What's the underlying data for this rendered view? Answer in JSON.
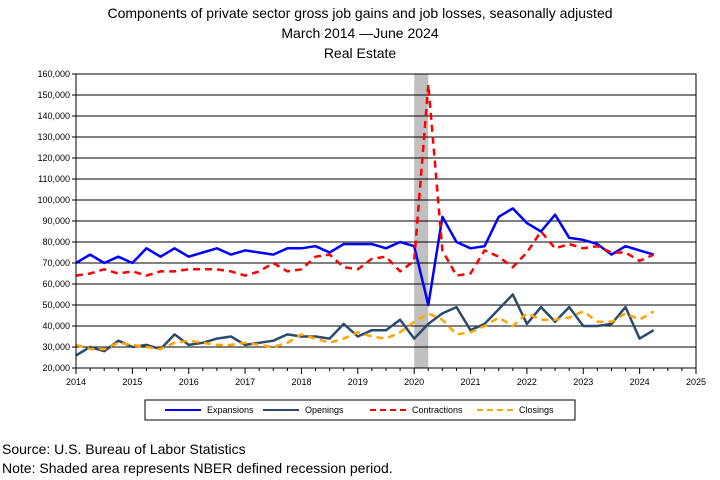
{
  "title_lines": [
    "Components of private sector gross job gains and job losses, seasonally adjusted",
    "March 2014 —June 2024",
    "Real Estate"
  ],
  "footnotes": {
    "source": "Source: U.S. Bureau of Labor Statistics",
    "note": "Note: Shaded area represents NBER defined recession period."
  },
  "chart_data": {
    "type": "line",
    "x_axis": {
      "min": 2014,
      "max": 2025,
      "ticks": [
        "2014",
        "2015",
        "2016",
        "2017",
        "2018",
        "2019",
        "2020",
        "2021",
        "2022",
        "2023",
        "2024",
        "2025"
      ]
    },
    "y_axis": {
      "min": 20000,
      "max": 160000,
      "step": 10000,
      "ticks": [
        "20,000",
        "30,000",
        "40,000",
        "50,000",
        "60,000",
        "70,000",
        "80,000",
        "90,000",
        "100,000",
        "110,000",
        "120,000",
        "130,000",
        "140,000",
        "150,000",
        "160,000"
      ]
    },
    "grid": {
      "horizontal": true,
      "vertical": false
    },
    "recession": {
      "start": 2020.0,
      "end": 2020.25
    },
    "legend_position": "bottom",
    "quarters": [
      "2014-Q1",
      "2014-Q2",
      "2014-Q3",
      "2014-Q4",
      "2015-Q1",
      "2015-Q2",
      "2015-Q3",
      "2015-Q4",
      "2016-Q1",
      "2016-Q2",
      "2016-Q3",
      "2016-Q4",
      "2017-Q1",
      "2017-Q2",
      "2017-Q3",
      "2017-Q4",
      "2018-Q1",
      "2018-Q2",
      "2018-Q3",
      "2018-Q4",
      "2019-Q1",
      "2019-Q2",
      "2019-Q3",
      "2019-Q4",
      "2020-Q1",
      "2020-Q2",
      "2020-Q3",
      "2020-Q4",
      "2021-Q1",
      "2021-Q2",
      "2021-Q3",
      "2021-Q4",
      "2022-Q1",
      "2022-Q2",
      "2022-Q3",
      "2022-Q4",
      "2023-Q1",
      "2023-Q2",
      "2023-Q3",
      "2023-Q4",
      "2024-Q1",
      "2024-Q2"
    ],
    "series": [
      {
        "name": "Expansions",
        "color": "#0000ff",
        "style": "solid",
        "width": 2.5,
        "values": [
          70000,
          74000,
          70000,
          73000,
          70000,
          77000,
          73000,
          77000,
          73000,
          75000,
          77000,
          74000,
          76000,
          75000,
          74000,
          77000,
          77000,
          78000,
          75000,
          79000,
          79000,
          79000,
          77000,
          80000,
          78000,
          50000,
          92000,
          80000,
          77000,
          78000,
          92000,
          96000,
          89000,
          85000,
          93000,
          82000,
          81000,
          79000,
          74000,
          78000,
          76000,
          74000
        ]
      },
      {
        "name": "Openings",
        "color": "#2b4a6e",
        "style": "solid",
        "width": 2.5,
        "values": [
          26000,
          30000,
          28000,
          33000,
          30000,
          31000,
          29000,
          36000,
          31000,
          32000,
          34000,
          35000,
          31000,
          32000,
          33000,
          36000,
          35000,
          35000,
          34000,
          41000,
          35000,
          38000,
          38000,
          43000,
          34000,
          41000,
          46000,
          49000,
          38000,
          41000,
          48000,
          55000,
          41000,
          49000,
          42000,
          49000,
          40000,
          40000,
          41000,
          49000,
          34000,
          38000
        ]
      },
      {
        "name": "Contractions",
        "color": "#ff0000",
        "style": "dash",
        "width": 2.5,
        "values": [
          64000,
          65000,
          67000,
          65000,
          66000,
          64000,
          66000,
          66000,
          67000,
          67000,
          67000,
          66000,
          64000,
          66000,
          70000,
          66000,
          67000,
          73000,
          74000,
          68000,
          67000,
          72000,
          73000,
          66000,
          71000,
          155000,
          76000,
          64000,
          65000,
          76000,
          73000,
          68000,
          75000,
          85000,
          77000,
          79000,
          77000,
          78000,
          75000,
          75000,
          71000,
          74000
        ]
      },
      {
        "name": "Closings",
        "color": "#ffa500",
        "style": "dash",
        "width": 2.5,
        "values": [
          31000,
          29000,
          29000,
          32000,
          31000,
          30000,
          29000,
          32000,
          33000,
          32000,
          31000,
          31000,
          32000,
          31000,
          30000,
          32000,
          36000,
          34000,
          32000,
          34000,
          37000,
          35000,
          34000,
          37000,
          42000,
          46000,
          43000,
          36000,
          37000,
          40000,
          44000,
          40000,
          46000,
          43000,
          43000,
          44000,
          47000,
          42000,
          42000,
          46000,
          43000,
          47000
        ]
      }
    ]
  }
}
